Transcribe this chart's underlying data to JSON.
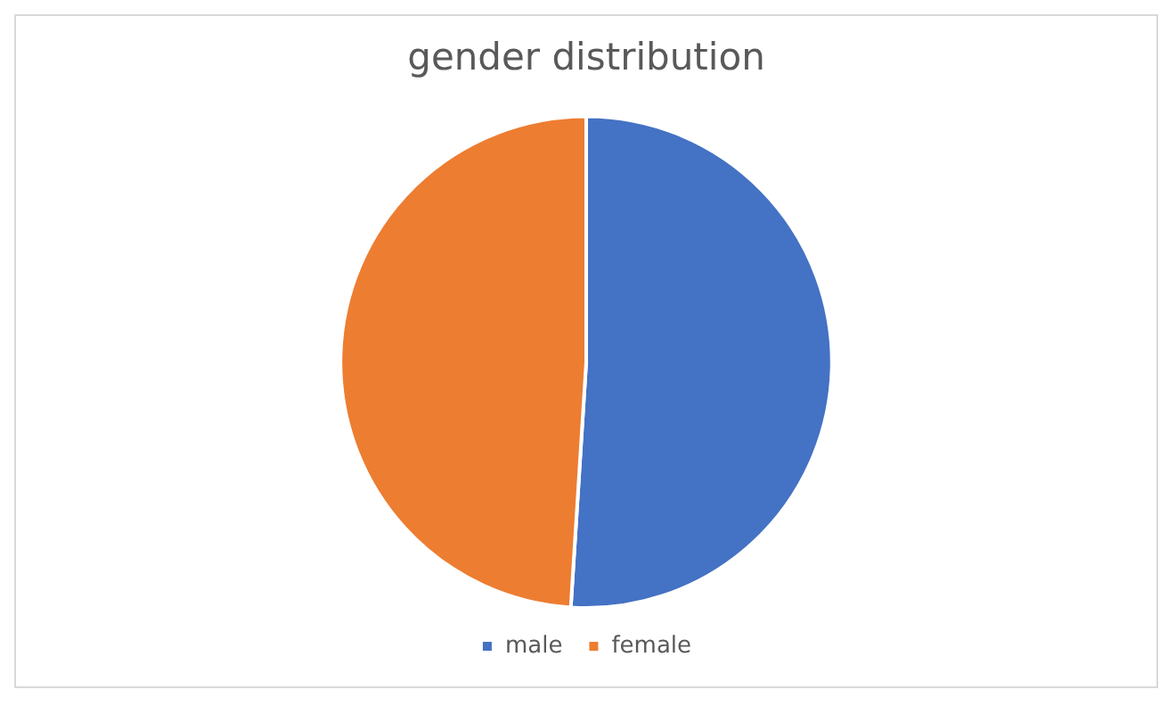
{
  "chart_data": {
    "type": "pie",
    "title": "gender distribution",
    "categories": [
      "male",
      "female"
    ],
    "values": [
      51,
      49
    ],
    "colors": [
      "#4472c4",
      "#ed7d31"
    ],
    "legend": "bottom"
  }
}
